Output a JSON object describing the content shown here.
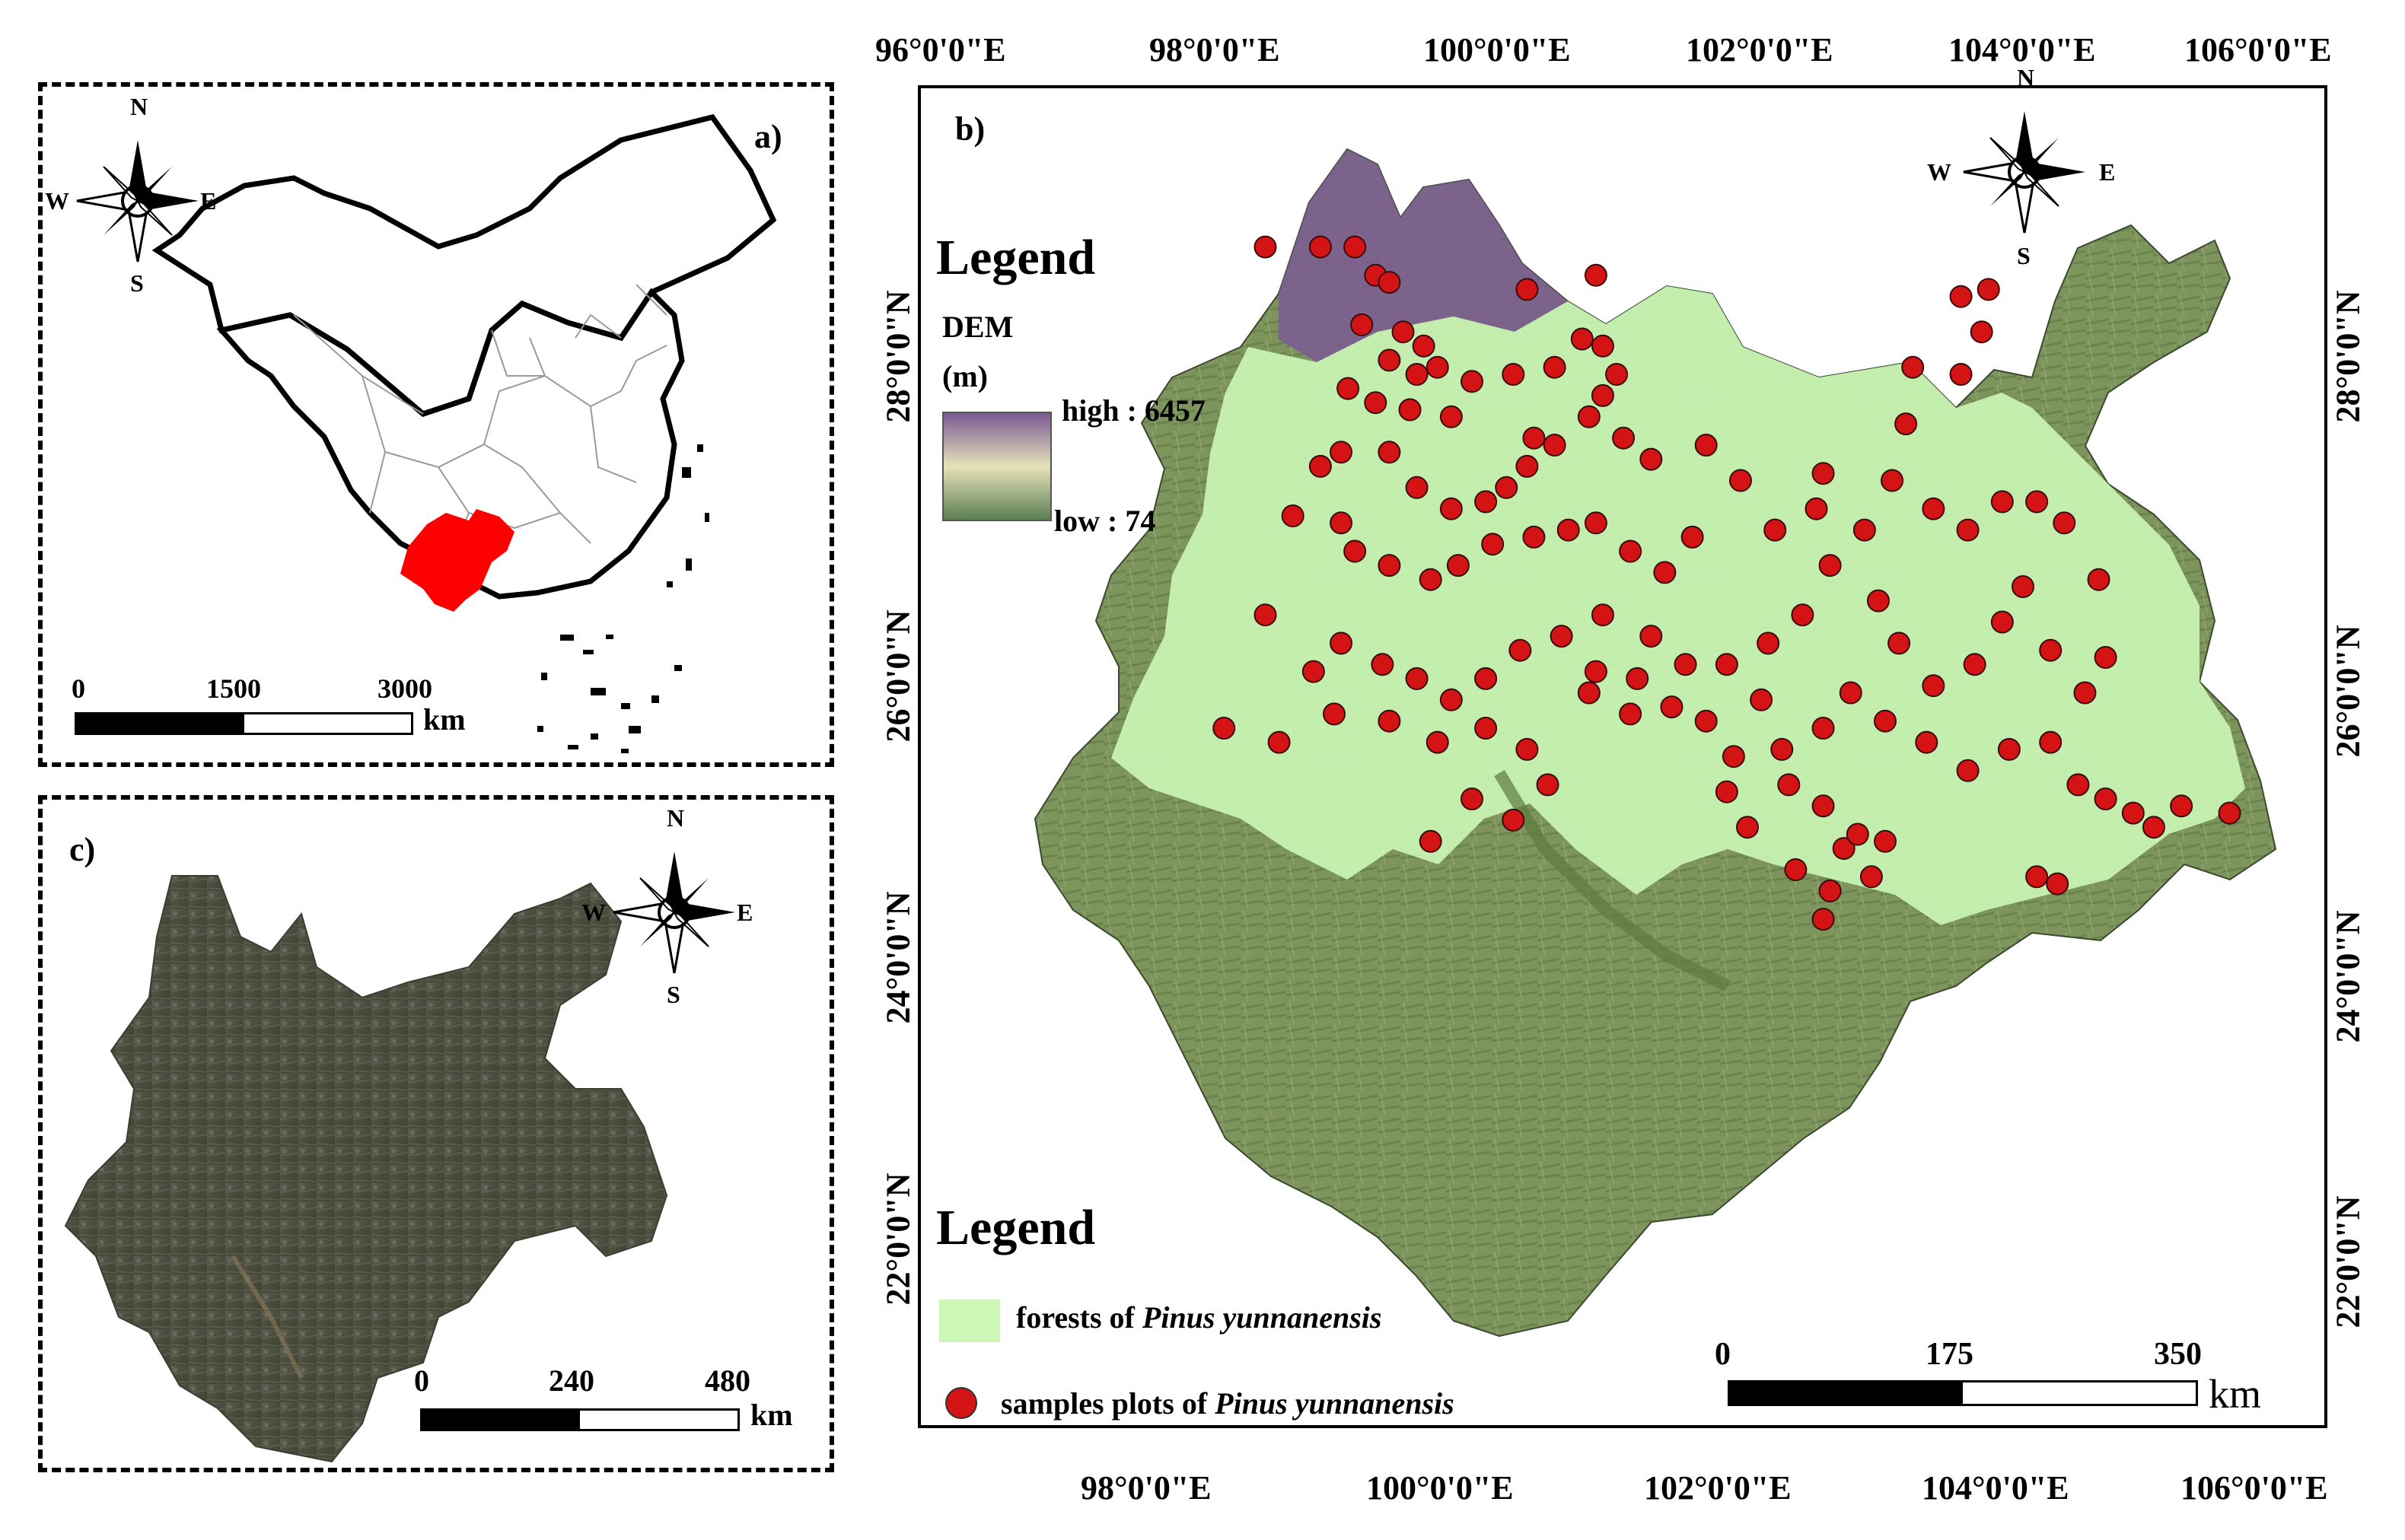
{
  "panel_a": {
    "label": "a)",
    "compass": {
      "n": "N",
      "s": "S",
      "e": "E",
      "w": "W"
    },
    "scale": {
      "ticks": [
        "0",
        "1500",
        "3000"
      ],
      "unit": "km"
    },
    "highlight_color": "#ff0000",
    "highlight_region": "Yunnan"
  },
  "panel_c": {
    "label": "c)",
    "compass": {
      "n": "N",
      "s": "S",
      "e": "E",
      "w": "W"
    },
    "scale": {
      "ticks": [
        "0",
        "240",
        "480"
      ],
      "unit": "km"
    }
  },
  "panel_b": {
    "label": "b)",
    "compass": {
      "n": "N",
      "s": "S",
      "e": "E",
      "w": "W"
    },
    "lon_labels": [
      "96°0'0\"E",
      "98°0'0\"E",
      "100°0'0\"E",
      "102°0'0\"E",
      "104°0'0\"E",
      "106°0'0\"E"
    ],
    "lon_labels_bottom": [
      "98°0'0\"E",
      "100°0'0\"E",
      "102°0'0\"E",
      "104°0'0\"E",
      "106°0'0\"E"
    ],
    "lat_labels": [
      "28°0'0\"N",
      "26°0'0\"N",
      "24°0'0\"N",
      "22°0'0\"N"
    ],
    "legend_dem": {
      "title": "Legend",
      "dem_label": "DEM",
      "unit_label": "(m)",
      "high": "high : 6457",
      "low": "low : 74",
      "high_color": "#7b5a94",
      "mid_color": "#e6e2b9",
      "low_color": "#5d7f54"
    },
    "legend_bottom": {
      "title": "Legend",
      "forest_prefix": "forests of ",
      "forest_species": "Pinus yunnanensis",
      "forest_color": "#ccf7b7",
      "sample_prefix": "samples plots of ",
      "sample_species": "Pinus yunnanensis",
      "sample_color": "#d41414"
    },
    "scale": {
      "ticks": [
        "0",
        "175",
        "350"
      ],
      "unit": "km"
    },
    "sample_plots": [
      [
        98.5,
        27.9
      ],
      [
        98.9,
        27.9
      ],
      [
        99.15,
        27.9
      ],
      [
        99.3,
        27.7
      ],
      [
        99.4,
        27.65
      ],
      [
        100.4,
        27.6
      ],
      [
        100.9,
        27.7
      ],
      [
        99.2,
        27.35
      ],
      [
        99.5,
        27.3
      ],
      [
        99.65,
        27.2
      ],
      [
        99.4,
        27.1
      ],
      [
        99.6,
        27.0
      ],
      [
        99.75,
        27.05
      ],
      [
        100.3,
        27.0
      ],
      [
        99.1,
        26.9
      ],
      [
        99.3,
        26.8
      ],
      [
        99.55,
        26.75
      ],
      [
        99.85,
        26.7
      ],
      [
        100.0,
        26.95
      ],
      [
        100.45,
        26.55
      ],
      [
        100.6,
        27.05
      ],
      [
        100.8,
        27.25
      ],
      [
        100.95,
        27.2
      ],
      [
        101.05,
        27.0
      ],
      [
        100.95,
        26.85
      ],
      [
        100.85,
        26.7
      ],
      [
        101.1,
        26.55
      ],
      [
        101.3,
        26.4
      ],
      [
        100.6,
        26.5
      ],
      [
        100.4,
        26.35
      ],
      [
        100.25,
        26.2
      ],
      [
        100.1,
        26.1
      ],
      [
        99.85,
        26.05
      ],
      [
        99.6,
        26.2
      ],
      [
        99.4,
        26.45
      ],
      [
        99.05,
        26.45
      ],
      [
        98.9,
        26.35
      ],
      [
        98.7,
        26.0
      ],
      [
        99.05,
        25.95
      ],
      [
        99.15,
        25.75
      ],
      [
        99.4,
        25.65
      ],
      [
        99.7,
        25.55
      ],
      [
        99.9,
        25.65
      ],
      [
        100.15,
        25.8
      ],
      [
        100.45,
        25.85
      ],
      [
        100.7,
        25.9
      ],
      [
        100.9,
        25.95
      ],
      [
        101.15,
        25.75
      ],
      [
        101.4,
        25.6
      ],
      [
        101.6,
        25.85
      ],
      [
        101.3,
        25.15
      ],
      [
        100.95,
        25.3
      ],
      [
        100.65,
        25.15
      ],
      [
        100.35,
        25.05
      ],
      [
        100.1,
        24.85
      ],
      [
        99.85,
        24.7
      ],
      [
        99.6,
        24.85
      ],
      [
        99.35,
        24.95
      ],
      [
        99.05,
        25.1
      ],
      [
        98.85,
        24.9
      ],
      [
        98.5,
        25.3
      ],
      [
        98.2,
        24.5
      ],
      [
        98.6,
        24.4
      ],
      [
        99.0,
        24.6
      ],
      [
        99.4,
        24.55
      ],
      [
        99.75,
        24.4
      ],
      [
        100.1,
        24.5
      ],
      [
        100.4,
        24.35
      ],
      [
        100.55,
        24.1
      ],
      [
        100.3,
        23.85
      ],
      [
        100.0,
        24.0
      ],
      [
        99.7,
        23.7
      ],
      [
        100.85,
        24.75
      ],
      [
        101.15,
        24.6
      ],
      [
        101.45,
        24.65
      ],
      [
        101.7,
        24.55
      ],
      [
        101.9,
        24.3
      ],
      [
        102.1,
        24.7
      ],
      [
        101.85,
        24.05
      ],
      [
        102.0,
        23.8
      ],
      [
        102.3,
        24.1
      ],
      [
        102.55,
        23.95
      ],
      [
        102.7,
        23.65
      ],
      [
        102.9,
        23.45
      ],
      [
        102.6,
        23.35
      ],
      [
        102.35,
        23.5
      ],
      [
        102.8,
        23.75
      ],
      [
        103.0,
        23.7
      ],
      [
        102.55,
        23.15
      ],
      [
        102.25,
        24.35
      ],
      [
        102.55,
        24.5
      ],
      [
        102.75,
        24.75
      ],
      [
        103.0,
        24.55
      ],
      [
        103.3,
        24.4
      ],
      [
        103.6,
        24.2
      ],
      [
        103.9,
        24.35
      ],
      [
        104.2,
        24.4
      ],
      [
        104.4,
        24.1
      ],
      [
        104.6,
        24.0
      ],
      [
        104.8,
        23.9
      ],
      [
        104.95,
        23.8
      ],
      [
        105.15,
        23.95
      ],
      [
        105.5,
        23.9
      ],
      [
        104.1,
        23.45
      ],
      [
        104.25,
        23.4
      ],
      [
        102.15,
        25.1
      ],
      [
        102.4,
        25.3
      ],
      [
        102.6,
        25.65
      ],
      [
        102.85,
        25.9
      ],
      [
        102.5,
        26.05
      ],
      [
        102.2,
        25.9
      ],
      [
        102.95,
        25.4
      ],
      [
        103.1,
        25.1
      ],
      [
        103.35,
        24.8
      ],
      [
        103.65,
        24.95
      ],
      [
        103.85,
        25.25
      ],
      [
        104.0,
        25.5
      ],
      [
        104.2,
        25.05
      ],
      [
        104.45,
        24.75
      ],
      [
        104.6,
        25.0
      ],
      [
        104.55,
        25.55
      ],
      [
        104.3,
        25.95
      ],
      [
        104.1,
        26.1
      ],
      [
        103.85,
        26.1
      ],
      [
        103.6,
        25.9
      ],
      [
        103.35,
        26.05
      ],
      [
        103.05,
        26.25
      ],
      [
        103.15,
        26.65
      ],
      [
        103.2,
        27.05
      ],
      [
        103.55,
        27.0
      ],
      [
        103.7,
        27.3
      ],
      [
        103.55,
        27.55
      ],
      [
        103.75,
        27.6
      ],
      [
        102.55,
        26.3
      ],
      [
        101.95,
        26.25
      ],
      [
        101.7,
        26.5
      ],
      [
        101.85,
        24.95
      ],
      [
        101.55,
        24.95
      ],
      [
        101.2,
        24.85
      ],
      [
        100.9,
        24.9
      ]
    ]
  }
}
